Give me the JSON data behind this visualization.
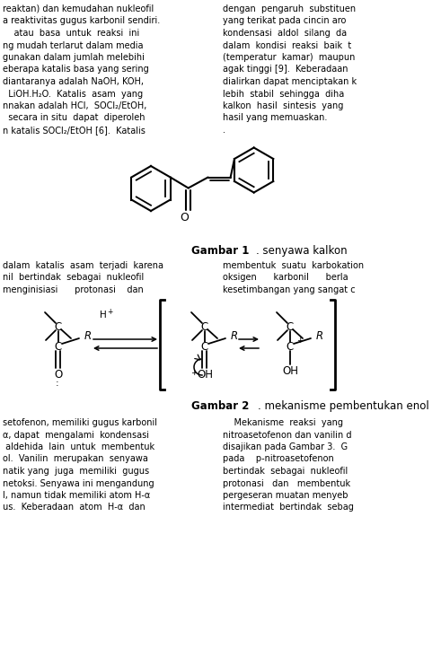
{
  "bg_color": "#ffffff",
  "figsize": [
    4.91,
    7.22
  ],
  "dpi": 100,
  "top_left_text": [
    "reaktan) dan kemudahan nukleofil",
    "a reaktivitas gugus karbonil sendiri.",
    "    atau  basa  untuk  reaksi  ini",
    "ng mudah terlarut dalam media",
    "gunakan dalam jumlah melebihi",
    "eberapa katalis basa yang sering",
    "diantaranya adalah NaOH, KOH,",
    "  LiOH.H₂O.  Katalis  asam  yang",
    "nnakan adalah HCl,  SOCl₂/EtOH,",
    "  secara in situ  dapat  diperoleh",
    "n katalis SOCl₂/EtOH [6].  Katalis"
  ],
  "top_right_text": [
    "dengan  pengaruh  substituen",
    "yang terikat pada cincin aro",
    "kondensasi  aldol  silang  da",
    "dalam  kondisi  reaksi  baik  t",
    "(temperatur  kamar)  maupun",
    "agak tinggi [9].  Keberadaan",
    "dialirkan dapat menciptakan k",
    "lebih  stabil  sehingga  diha",
    "kalkon  hasil  sintesis  yang",
    "hasil yang memuaskan.",
    "."
  ],
  "mid_left_text": [
    "dalam  katalis  asam  terjadi  karena",
    "nil  bertindak  sebagai  nukleofil",
    "menginisiasi      protonasi    dan"
  ],
  "mid_right_text": [
    "membentuk  suatu  karbokation",
    "oksigen      karbonil      berla",
    "kesetimbangan yang sangat c"
  ],
  "bot_left_text": [
    "setofenon, memiliki gugus karbonil",
    "α, dapat  mengalami  kondensasi",
    " aldehida  lain  untuk  membentuk",
    "ol.  Vanilin  merupakan  senyawa",
    "natik yang  juga  memiliki  gugus",
    "netoksi. Senyawa ini mengandung",
    "l, namun tidak memiliki atom H-α",
    "us.  Keberadaan  atom  H-α  dan"
  ],
  "bot_right_text": [
    "    Mekanisme  reaksi  yang",
    "nitroasetofenon dan vanilin d",
    "disajikan pada Gambar 3.  G",
    "pada    p-nitroasetofenon",
    "bertindak  sebagai  nukleofil",
    "protonasi   dan   membentuk",
    "pergeseran muatan menyeb",
    "intermediat  bertindak  sebag"
  ]
}
